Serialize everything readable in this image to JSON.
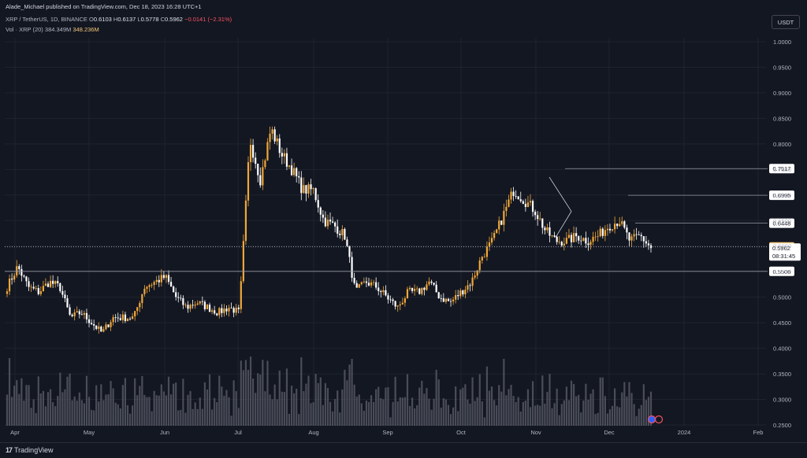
{
  "header": {
    "publisher": "Alade_Michael published on TradingView.com, Dec 18, 2023 16:28 UTC+1",
    "symbol": "XRP / TetherUS, 1D, BINANCE",
    "open_label": "O",
    "open": "0.6103",
    "high_label": "H",
    "high": "0.6137",
    "low_label": "L",
    "low": "0.5778",
    "close_label": "C",
    "close": "0.5962",
    "change": "−0.0141 (−2.31%)",
    "volume_label": "Vol · XRP (20)",
    "volume_ma": "384.349M",
    "volume": "348.236M"
  },
  "currency_button": "USDT",
  "footer": {
    "brand": "TradingView",
    "logo_glyph": "17"
  },
  "colors": {
    "background": "#131722",
    "up": "#f0a83a",
    "down": "#ffffff",
    "grid": "#1f232e"
  },
  "chart_data": {
    "type": "candlestick",
    "title": "XRP / TetherUS, 1D, BINANCE",
    "ylim": [
      0.25,
      1.0
    ],
    "y_ticks": [
      "1.0000",
      "0.9500",
      "0.9000",
      "0.8500",
      "0.8000",
      "0.7500",
      "0.7000",
      "0.6500",
      "0.6000",
      "0.5500",
      "0.5000",
      "0.4500",
      "0.4000",
      "0.3500",
      "0.3000",
      "0.2500"
    ],
    "x_ticks": [
      "Apr",
      "May",
      "Jun",
      "Jul",
      "Aug",
      "Sep",
      "Oct",
      "Nov",
      "Dec",
      "2024",
      "Feb"
    ],
    "price_levels": [
      {
        "label": "0.7517",
        "value": 0.7517
      },
      {
        "label": "0.6995",
        "value": 0.6995
      },
      {
        "label": "0.6448",
        "value": 0.6448
      },
      {
        "label": "0.5506",
        "value": 0.5506
      }
    ],
    "previous_close": {
      "label": "0.5985",
      "value": 0.5985
    },
    "last_price": {
      "label": "0.5962",
      "value": 0.5962,
      "countdown": "08:31:45"
    },
    "close_path": [
      {
        "x": "Mar 27",
        "y": 0.52
      },
      {
        "x": "Mar 30",
        "y": 0.56
      },
      {
        "x": "Apr 2",
        "y": 0.52
      },
      {
        "x": "Apr 8",
        "y": 0.51
      },
      {
        "x": "Apr 14",
        "y": 0.53
      },
      {
        "x": "Apr 18",
        "y": 0.52
      },
      {
        "x": "Apr 22",
        "y": 0.46
      },
      {
        "x": "Apr 30",
        "y": 0.47
      },
      {
        "x": "May 6",
        "y": 0.45
      },
      {
        "x": "May 12",
        "y": 0.43
      },
      {
        "x": "May 17",
        "y": 0.46
      },
      {
        "x": "May 22",
        "y": 0.46
      },
      {
        "x": "May 27",
        "y": 0.46
      },
      {
        "x": "Jun 1",
        "y": 0.52
      },
      {
        "x": "Jun 6",
        "y": 0.53
      },
      {
        "x": "Jun 10",
        "y": 0.54
      },
      {
        "x": "Jun 13",
        "y": 0.5
      },
      {
        "x": "Jun 17",
        "y": 0.48
      },
      {
        "x": "Jun 23",
        "y": 0.49
      },
      {
        "x": "Jun 28",
        "y": 0.48
      },
      {
        "x": "Jul 2",
        "y": 0.47
      },
      {
        "x": "Jul 8",
        "y": 0.48
      },
      {
        "x": "Jul 12",
        "y": 0.47
      },
      {
        "x": "Jul 13",
        "y": 0.81
      },
      {
        "x": "Jul 15",
        "y": 0.73
      },
      {
        "x": "Jul 18",
        "y": 0.83
      },
      {
        "x": "Jul 20",
        "y": 0.78
      },
      {
        "x": "Jul 22",
        "y": 0.75
      },
      {
        "x": "Jul 26",
        "y": 0.71
      },
      {
        "x": "Jul 30",
        "y": 0.71
      },
      {
        "x": "Aug 3",
        "y": 0.65
      },
      {
        "x": "Aug 8",
        "y": 0.64
      },
      {
        "x": "Aug 14",
        "y": 0.62
      },
      {
        "x": "Aug 17",
        "y": 0.51
      },
      {
        "x": "Aug 21",
        "y": 0.53
      },
      {
        "x": "Aug 28",
        "y": 0.52
      },
      {
        "x": "Sep 4",
        "y": 0.5
      },
      {
        "x": "Sep 11",
        "y": 0.48
      },
      {
        "x": "Sep 18",
        "y": 0.51
      },
      {
        "x": "Sep 25",
        "y": 0.51
      },
      {
        "x": "Oct 2",
        "y": 0.53
      },
      {
        "x": "Oct 8",
        "y": 0.5
      },
      {
        "x": "Oct 14",
        "y": 0.49
      },
      {
        "x": "Oct 19",
        "y": 0.51
      },
      {
        "x": "Oct 23",
        "y": 0.53
      },
      {
        "x": "Oct 27",
        "y": 0.58
      },
      {
        "x": "Oct 31",
        "y": 0.61
      },
      {
        "x": "Nov 3",
        "y": 0.66
      },
      {
        "x": "Nov 7",
        "y": 0.71
      },
      {
        "x": "Nov 9",
        "y": 0.69
      },
      {
        "x": "Nov 11",
        "y": 0.67
      },
      {
        "x": "Nov 14",
        "y": 0.63
      },
      {
        "x": "Nov 17",
        "y": 0.61
      },
      {
        "x": "Nov 21",
        "y": 0.61
      },
      {
        "x": "Nov 25",
        "y": 0.62
      },
      {
        "x": "Nov 29",
        "y": 0.61
      },
      {
        "x": "Dec 2",
        "y": 0.62
      },
      {
        "x": "Dec 6",
        "y": 0.64
      },
      {
        "x": "Dec 10",
        "y": 0.65
      },
      {
        "x": "Dec 12",
        "y": 0.61
      },
      {
        "x": "Dec 15",
        "y": 0.62
      },
      {
        "x": "Dec 18",
        "y": 0.5962
      }
    ]
  }
}
